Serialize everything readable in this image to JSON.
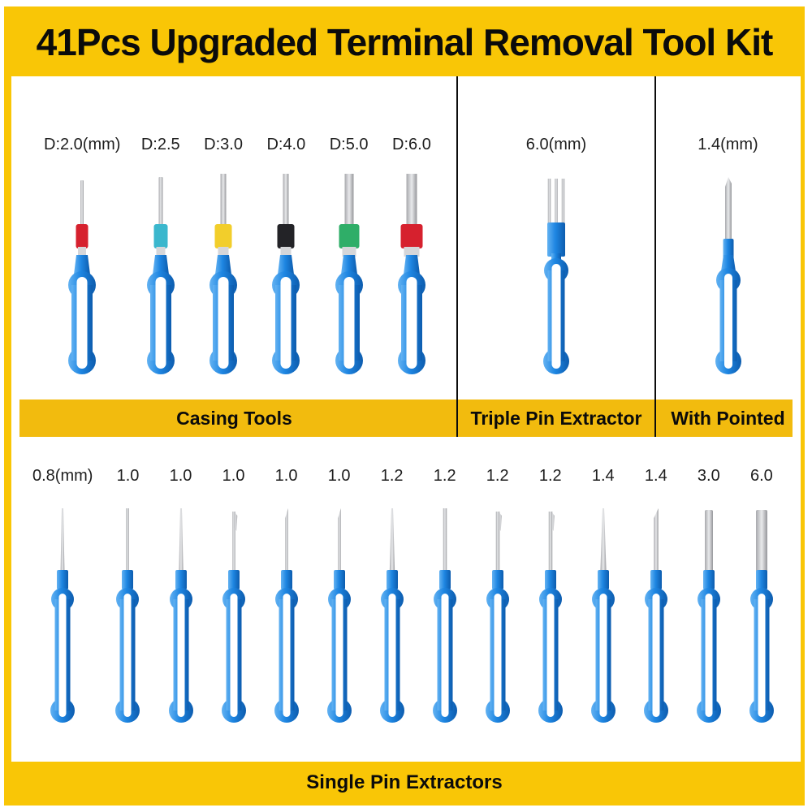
{
  "title": "41Pcs Upgraded Terminal Removal Tool Kit",
  "colors": {
    "frame_yellow": "#F9C606",
    "band_yellow": "#F2BB0E",
    "tool_blue": "#1E86E2",
    "pin_silver": "#C9CACD",
    "text_black": "#0B0B0B",
    "panel_white": "#FFFFFF"
  },
  "sections": {
    "casing": {
      "caption": "Casing Tools",
      "tools": [
        {
          "label": "D:2.0(mm)",
          "mm": 2.0,
          "collar_color": "#D6212E"
        },
        {
          "label": "D:2.5",
          "mm": 2.5,
          "collar_color": "#3BB7CD"
        },
        {
          "label": "D:3.0",
          "mm": 3.0,
          "collar_color": "#F2CE2B"
        },
        {
          "label": "D:4.0",
          "mm": 4.0,
          "collar_color": "#232327"
        },
        {
          "label": "D:5.0",
          "mm": 5.0,
          "collar_color": "#2FAE68"
        },
        {
          "label": "D:6.0",
          "mm": 6.0,
          "collar_color": "#D6212E"
        }
      ]
    },
    "triple": {
      "caption": "Triple Pin Extractor",
      "label": "6.0(mm)"
    },
    "pointed": {
      "caption": "With Pointed",
      "label": "1.4(mm)"
    },
    "single": {
      "caption": "Single Pin Extractors",
      "tools": [
        {
          "label": "0.8(mm)",
          "mm": 0.8,
          "tip": "tapered"
        },
        {
          "label": "1.0",
          "mm": 1.0,
          "tip": "straight"
        },
        {
          "label": "1.0",
          "mm": 1.0,
          "tip": "tapered"
        },
        {
          "label": "1.0",
          "mm": 1.0,
          "tip": "notched"
        },
        {
          "label": "1.0",
          "mm": 1.0,
          "tip": "angled"
        },
        {
          "label": "1.0",
          "mm": 1.0,
          "tip": "angled"
        },
        {
          "label": "1.2",
          "mm": 1.2,
          "tip": "tapered"
        },
        {
          "label": "1.2",
          "mm": 1.2,
          "tip": "straight"
        },
        {
          "label": "1.2",
          "mm": 1.2,
          "tip": "notched"
        },
        {
          "label": "1.2",
          "mm": 1.2,
          "tip": "notched"
        },
        {
          "label": "1.4",
          "mm": 1.4,
          "tip": "tapered"
        },
        {
          "label": "1.4",
          "mm": 1.4,
          "tip": "angled"
        },
        {
          "label": "3.0",
          "mm": 3.0,
          "tip": "rod"
        },
        {
          "label": "6.0",
          "mm": 6.0,
          "tip": "rod"
        }
      ]
    }
  }
}
